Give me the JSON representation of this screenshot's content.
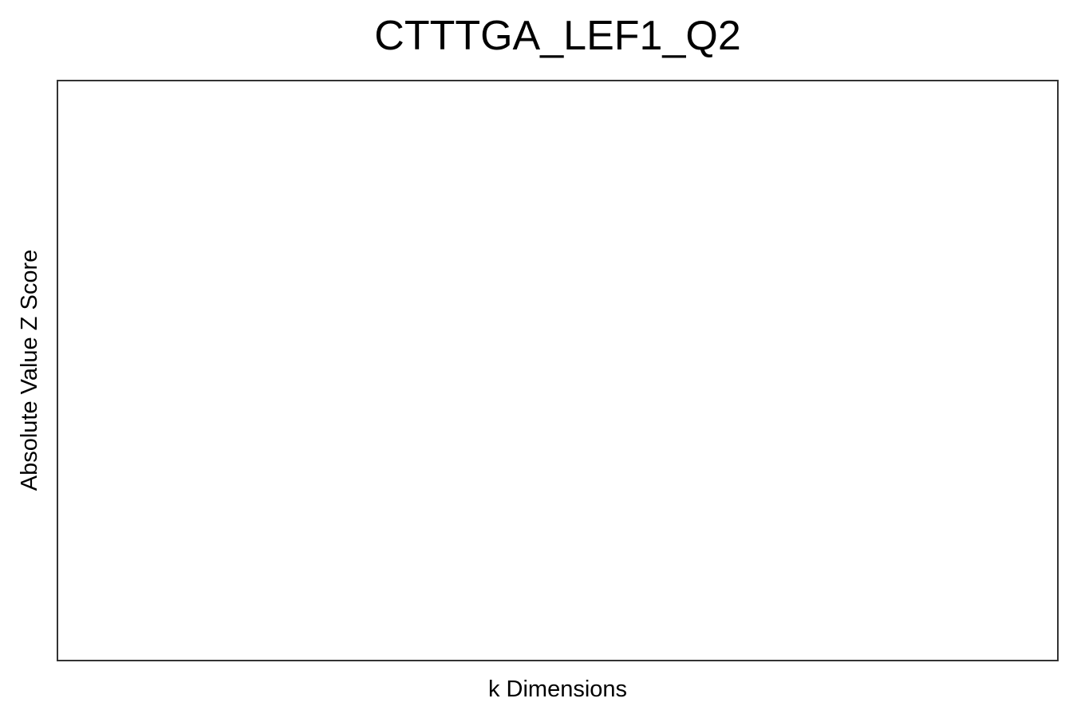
{
  "chart_data": {
    "type": "line",
    "title": "CTTTGA_LEF1_Q2",
    "xlabel": "k Dimensions",
    "ylabel": "Absolute Value Z Score",
    "x": [],
    "series": [],
    "grid": false,
    "legend": "none"
  }
}
